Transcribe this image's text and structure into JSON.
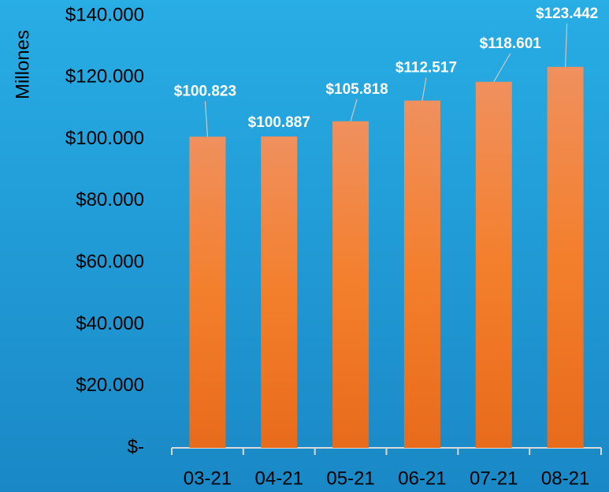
{
  "chart_data": {
    "type": "bar",
    "y_axis_label": "Millones",
    "categories": [
      "03-21",
      "04-21",
      "05-21",
      "06-21",
      "07-21",
      "08-21"
    ],
    "values": [
      100823,
      100887,
      105818,
      112517,
      118601,
      123442
    ],
    "value_labels": [
      "$100.823",
      "$100.887",
      "$105.818",
      "$112.517",
      "$118.601",
      "$123.442"
    ],
    "color": "#f07d2f",
    "ylim": [
      0,
      140000
    ],
    "yticks": [
      {
        "value": 0,
        "label": "$-"
      },
      {
        "value": 20000,
        "label": "$20.000"
      },
      {
        "value": 40000,
        "label": "$40.000"
      },
      {
        "value": 60000,
        "label": "$60.000"
      },
      {
        "value": 80000,
        "label": "$80.000"
      },
      {
        "value": 100000,
        "label": "$100.000"
      },
      {
        "value": 120000,
        "label": "$120.000"
      },
      {
        "value": 140000,
        "label": "$140.000"
      }
    ],
    "grid": false
  }
}
